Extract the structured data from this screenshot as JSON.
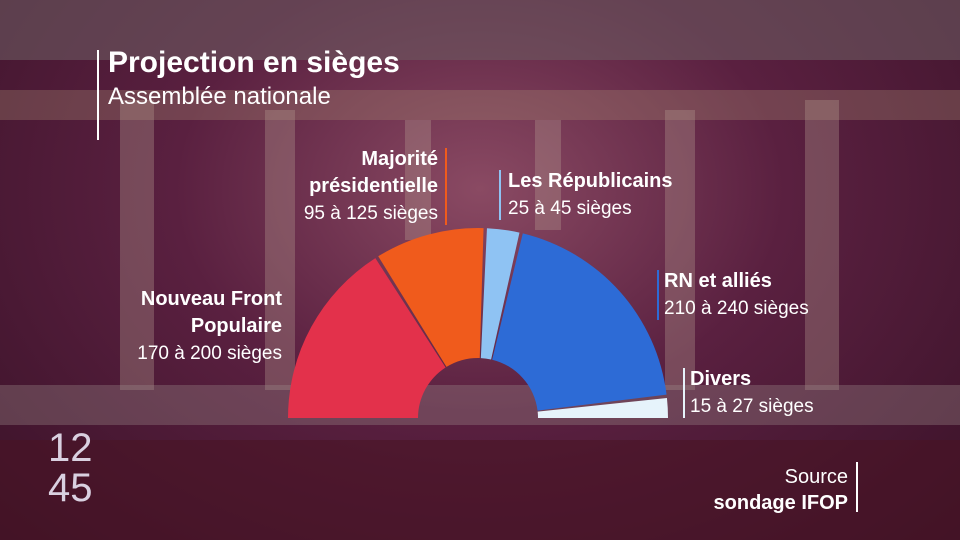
{
  "chart_data": {
    "type": "semicircle",
    "title": "Projection en sièges",
    "subtitle": "Assemblée nationale",
    "series": [
      {
        "name": "Nouveau Front Populaire",
        "color": "#e3314b",
        "values": [
          185
        ],
        "range_label": "170 à 200 sièges"
      },
      {
        "name": "Majorité présidentielle",
        "color": "#f05b1c",
        "values": [
          110
        ],
        "range_label": "95 à 125 sièges"
      },
      {
        "name": "Les Républicains",
        "color": "#8fc3f3",
        "values": [
          35
        ],
        "range_label": "25 à 45 sièges"
      },
      {
        "name": "RN et alliés",
        "color": "#2d6bd6",
        "values": [
          225
        ],
        "range_label": "210 à 240 sièges"
      },
      {
        "name": "Divers",
        "color": "#e6f3fb",
        "values": [
          21
        ],
        "range_label": "15 à 27 sièges"
      }
    ],
    "source_label": "Source",
    "source": "sondage IFOP",
    "logo": [
      "12",
      "45"
    ]
  }
}
